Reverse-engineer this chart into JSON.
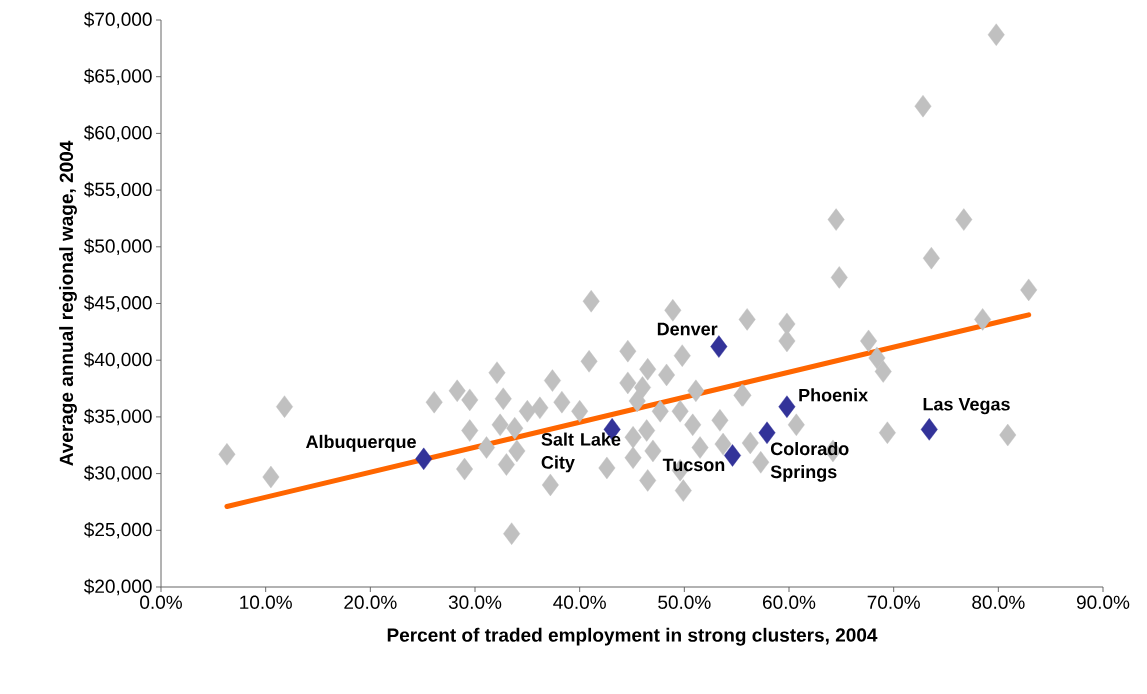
{
  "chart_data": {
    "type": "scatter",
    "xlabel": "Percent of traded employment in strong clusters, 2004",
    "ylabel": "Average annual regional wage, 2004",
    "marker": "diamond",
    "grid": false,
    "xlim": [
      0,
      90
    ],
    "ylim": [
      20000,
      70000
    ],
    "xticks": [
      {
        "value": 0,
        "label": "0.0%"
      },
      {
        "value": 10,
        "label": "10.0%"
      },
      {
        "value": 20,
        "label": "20.0%"
      },
      {
        "value": 30,
        "label": "30.0%"
      },
      {
        "value": 40,
        "label": "40.0%"
      },
      {
        "value": 50,
        "label": "50.0%"
      },
      {
        "value": 60,
        "label": "60.0%"
      },
      {
        "value": 70,
        "label": "70.0%"
      },
      {
        "value": 80,
        "label": "80.0%"
      },
      {
        "value": 90,
        "label": "90.0%"
      }
    ],
    "yticks": [
      {
        "value": 20000,
        "label": "$20,000"
      },
      {
        "value": 25000,
        "label": "$25,000"
      },
      {
        "value": 30000,
        "label": "$30,000"
      },
      {
        "value": 35000,
        "label": "$35,000"
      },
      {
        "value": 40000,
        "label": "$40,000"
      },
      {
        "value": 45000,
        "label": "$45,000"
      },
      {
        "value": 50000,
        "label": "$50,000"
      },
      {
        "value": 55000,
        "label": "$55,000"
      },
      {
        "value": 60000,
        "label": "$60,000"
      },
      {
        "value": 65000,
        "label": "$65,000"
      },
      {
        "value": 70000,
        "label": "$70,000"
      }
    ],
    "series": [
      {
        "color": "#c0c0c0",
        "x": [
          6.3,
          10.5,
          11.8,
          26.1,
          28.3,
          29.5,
          32.7,
          29.0,
          29.5,
          32.1,
          33.5,
          31.1,
          33.0,
          32.4,
          33.8,
          34.0,
          35.0,
          36.2,
          37.4,
          38.3,
          40.0,
          37.2,
          40.9,
          41.1,
          42.6,
          44.6,
          44.6,
          45.5,
          46.0,
          45.1,
          46.4,
          47.0,
          45.1,
          46.5,
          46.5,
          47.7,
          48.3,
          48.9,
          49.6,
          49.8,
          49.9,
          49.6,
          50.8,
          51.1,
          51.5,
          53.4,
          53.7,
          55.5,
          56.0,
          55.6,
          56.3,
          57.3,
          59.8,
          59.8,
          60.7,
          64.2,
          64.5,
          64.8,
          67.6,
          68.4,
          69.0,
          69.4,
          72.8,
          73.6,
          76.7,
          78.5,
          79.8,
          80.9,
          82.9
        ],
        "values": [
          31700,
          29700,
          35900,
          36300,
          37300,
          36500,
          36600,
          30400,
          33800,
          38900,
          24700,
          32300,
          30800,
          34300,
          34000,
          32000,
          35500,
          35800,
          38200,
          36300,
          35500,
          29000,
          39900,
          45200,
          30500,
          40800,
          38000,
          36400,
          37600,
          33200,
          33800,
          32000,
          31400,
          39200,
          29400,
          35500,
          38700,
          44400,
          35500,
          40400,
          28500,
          30300,
          34300,
          37300,
          32300,
          34700,
          32600,
          36900,
          43600,
          36900,
          32700,
          31000,
          43200,
          41700,
          34300,
          32000,
          52400,
          47300,
          41700,
          40200,
          39000,
          33600,
          62400,
          49000,
          52400,
          43600,
          68700,
          33400,
          46200
        ]
      },
      {
        "color": "#333399",
        "x": [
          25.1,
          43.1,
          53.3,
          54.6,
          57.9,
          59.8,
          73.4
        ],
        "values": [
          31300,
          33900,
          41200,
          31600,
          33600,
          35900,
          33900
        ]
      },
      {
        "type": "line",
        "color": "#ff6600",
        "marker": "none",
        "x": [
          6.3,
          82.9
        ],
        "values": [
          27100,
          44000
        ]
      }
    ],
    "annotations": [
      {
        "text": "Albuquerque",
        "x": 25.1,
        "y": 31300
      },
      {
        "text": "Salt Lake City",
        "x": 43.1,
        "y": 33900
      },
      {
        "text": "Denver",
        "x": 53.3,
        "y": 41200
      },
      {
        "text": "Tucson",
        "x": 54.6,
        "y": 31600
      },
      {
        "text": "Colorado Springs",
        "x": 57.9,
        "y": 33600
      },
      {
        "text": "Phoenix",
        "x": 59.8,
        "y": 35900
      },
      {
        "text": "Las Vegas",
        "x": 73.4,
        "y": 33900
      }
    ]
  }
}
